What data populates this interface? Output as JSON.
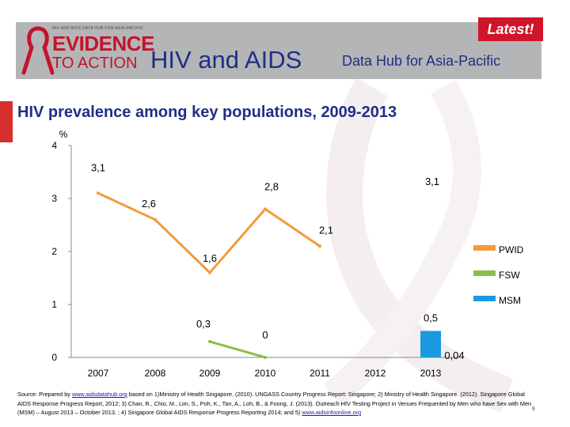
{
  "header": {
    "latest": "Latest!",
    "logo_small": "HIV AND AIDS DATA HUB FOR ASIA-PACIFIC",
    "logo_line1": "EVIDENCE",
    "logo_line2": "TO ACTION",
    "hub_main": "HIV and AIDS",
    "hub_sub": "Data Hub for Asia-Pacific",
    "brand_color": "#c4142c",
    "accent_color": "#d72e2e"
  },
  "slide": {
    "title": "HIV prevalence among key populations, 2009-2013",
    "page_number": "8"
  },
  "source": {
    "text_1": "Source: Prepared by ",
    "link_1": "www.aidsdatahub.org",
    "text_2": " based on 1)Ministry of Health Singapore. (2010). UNGASS Country Progress Report: Singapore; 2) Ministry of Health Singapore. (2012). Singapore Global AIDS Response Progress Report, 2012; 3) Chan, R., Chio, M., Lim, S., Poh, K., Tan, A., Loh, B., & Foong, J. (2013). Outreach HIV Testing Project in Venues Frequented by Men who have Sex with Men (MSM) – August 2013 – October 2013. ; 4) Singapore Global AIDS Response Progress Reporting 2014; and 5) ",
    "link_2": "www.aidsinfoonline.org"
  },
  "chart_data": {
    "type": "line",
    "title": "HIV prevalence among key populations, 2009-2013",
    "ylabel": "%",
    "ylim": [
      0,
      4
    ],
    "yticks": [
      "0",
      "1",
      "2",
      "3",
      "4"
    ],
    "categories": [
      "2007",
      "2008",
      "2009",
      "2010",
      "2011",
      "2012",
      "2013"
    ],
    "grid": false,
    "legend_position": "right",
    "series": [
      {
        "name": "PWID",
        "type": "line",
        "color": "#f29b3c",
        "values": [
          3.1,
          2.6,
          1.6,
          2.8,
          2.1,
          null,
          null
        ],
        "labels": [
          "3,1",
          "2,6",
          "1,6",
          "2,8",
          "2,1",
          "",
          ""
        ]
      },
      {
        "name": "FSW",
        "type": "line",
        "color": "#8cbd4a",
        "values": [
          null,
          null,
          0.3,
          0,
          null,
          null,
          null
        ],
        "labels": [
          "",
          "",
          "0,3",
          "0",
          "",
          "",
          ""
        ]
      },
      {
        "name": "MSM",
        "type": "bar",
        "color": "#1a99e0",
        "values": [
          null,
          null,
          null,
          null,
          null,
          null,
          0.5
        ],
        "labels": [
          "",
          "",
          "",
          "",
          "",
          "",
          "0,5"
        ]
      }
    ],
    "annotations": [
      "3,1",
      "0,04"
    ]
  }
}
